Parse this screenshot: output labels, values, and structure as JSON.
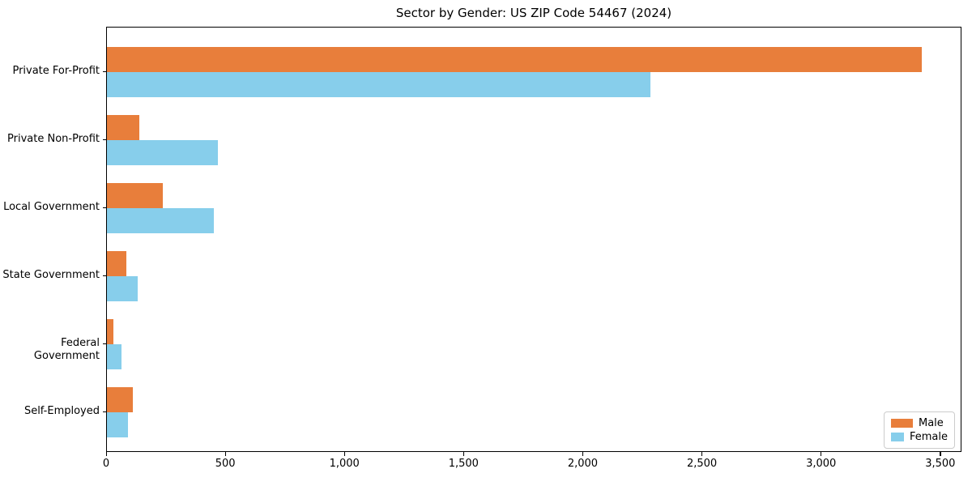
{
  "chart_data": {
    "type": "bar",
    "orientation": "horizontal",
    "title": "Sector by Gender: US ZIP Code 54467 (2024)",
    "categories": [
      "Private For-Profit",
      "Private Non-Profit",
      "Local Government",
      "State Government",
      "Federal Government",
      "Self-Employed"
    ],
    "series": [
      {
        "name": "Male",
        "color": "#e87e3b",
        "values": [
          3418,
          137,
          233,
          81,
          28,
          108
        ]
      },
      {
        "name": "Female",
        "color": "#87ceeb",
        "values": [
          2279,
          465,
          448,
          128,
          60,
          88
        ]
      }
    ],
    "xlabel": "",
    "ylabel": "",
    "xlim": [
      0,
      3589
    ],
    "xticks": [
      0,
      500,
      1000,
      1500,
      2000,
      2500,
      3000,
      3500
    ],
    "xtick_labels": [
      "0",
      "500",
      "1,000",
      "1,500",
      "2,000",
      "2,500",
      "3,000",
      "3,500"
    ],
    "grid": false,
    "legend": {
      "position": "lower right"
    }
  }
}
